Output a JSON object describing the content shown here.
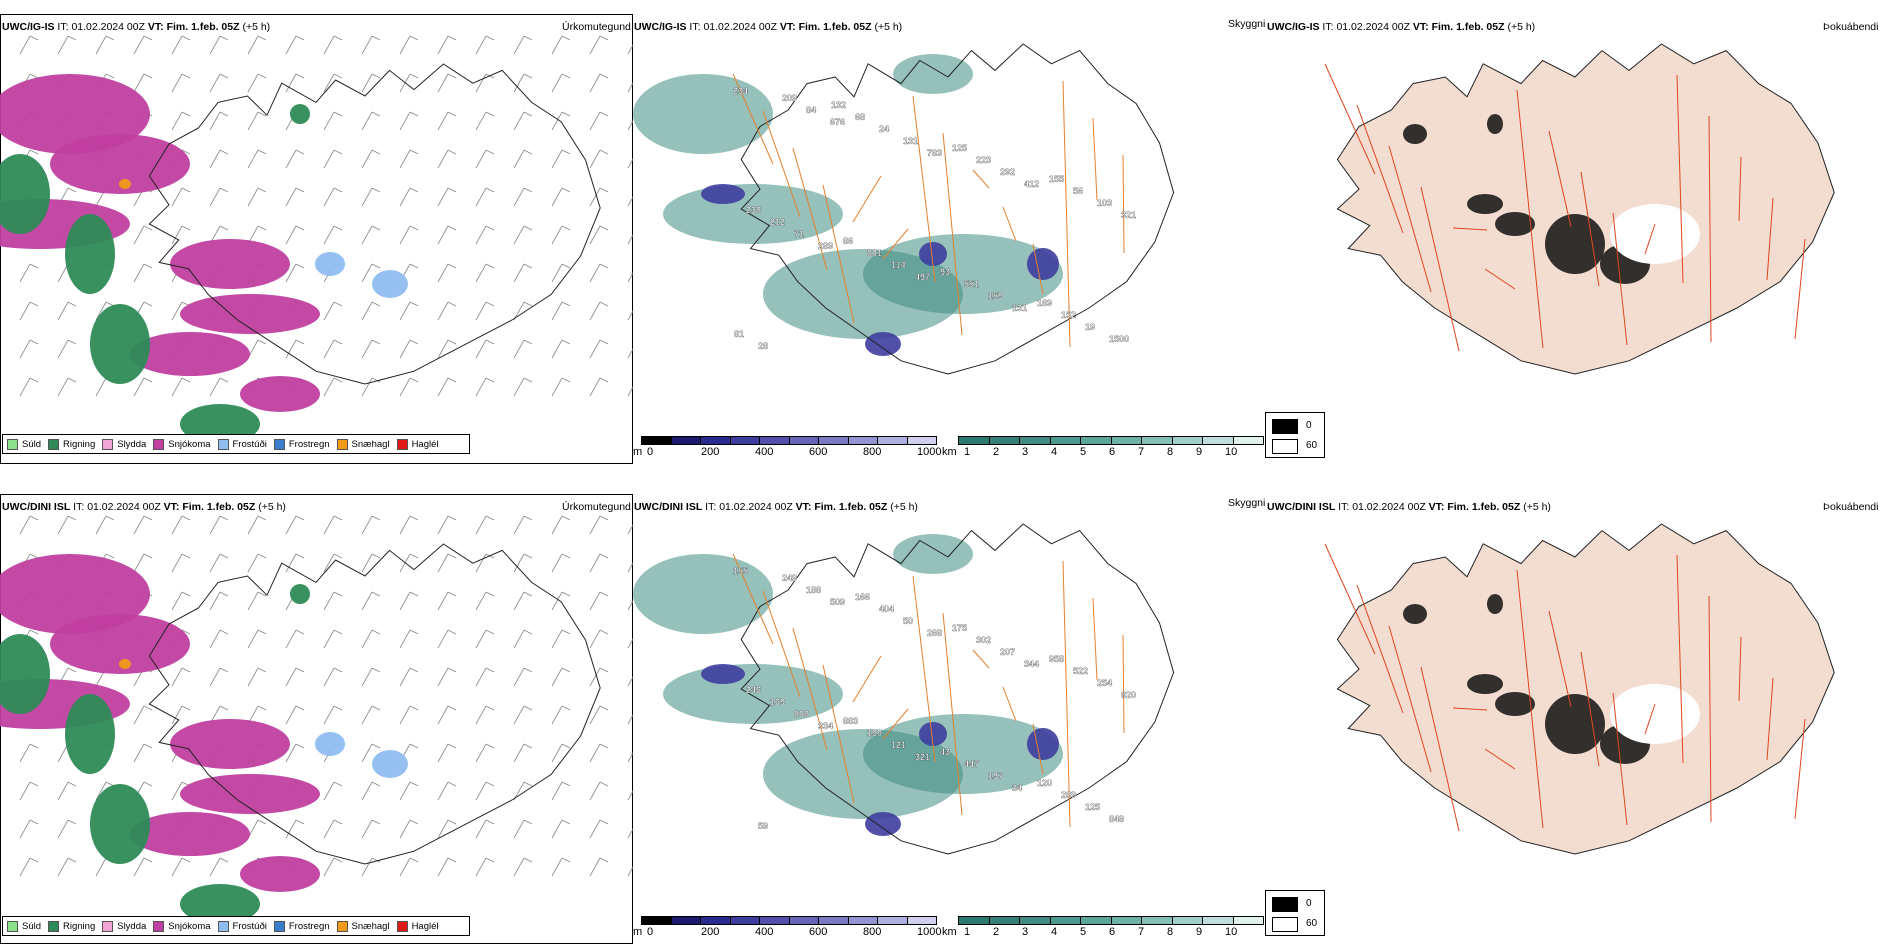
{
  "rows": [
    {
      "precip_header": {
        "model": "UWC/IG-IS",
        "it_label": "IT:",
        "it_value": "01.02.2024 00Z",
        "vt_label": "VT:",
        "vt_value": "Fim. 1.feb. 05Z",
        "lead": "(+5 h)"
      },
      "precip_title": "Úrkomutegund",
      "cloud_header": {
        "model": "UWC/IG-IS",
        "it_label": "IT:",
        "it_value": "01.02.2024 00Z",
        "vt_label": "VT:",
        "vt_value": "Fim. 1.feb. 05Z",
        "lead": "(+5 h)"
      },
      "cloud_title": "Skyggni",
      "fog_header": {
        "model": "UWC/IG-IS",
        "it_label": "IT:",
        "it_value": "01.02.2024 00Z",
        "vt_label": "VT:",
        "vt_value": "Fim. 1.feb. 05Z",
        "lead": "(+5 h)"
      },
      "fog_title": "Þokuábendi",
      "cloud_labels": [
        "234",
        "676",
        "783",
        "412",
        "321",
        "289",
        "497",
        "131",
        "1500",
        "84",
        "131",
        "292",
        "103",
        "71",
        "114",
        "159",
        "19",
        "209",
        "24",
        "223",
        "56",
        "212",
        "801",
        "551",
        "152",
        "28",
        "68",
        "125",
        "155",
        "238",
        "86",
        "93",
        "189",
        "81",
        "132"
      ]
    },
    {
      "precip_header": {
        "model": "UWC/DINI ISL",
        "it_label": "IT:",
        "it_value": "01.02.2024 00Z",
        "vt_label": "VT:",
        "vt_value": "Fim. 1.feb. 05Z",
        "lead": "(+5 h)"
      },
      "precip_title": "Úrkomutegund",
      "cloud_header": {
        "model": "UWC/DINI ISL",
        "it_label": "IT:",
        "it_value": "01.02.2024 00Z",
        "vt_label": "VT:",
        "vt_value": "Fim. 1.feb. 05Z",
        "lead": "(+5 h)"
      },
      "cloud_title": "Skyggni",
      "fog_header": {
        "model": "UWC/DINI ISL",
        "it_label": "IT:",
        "it_value": "01.02.2024 00Z",
        "vt_label": "VT:",
        "vt_value": "Fim. 1.feb. 05Z",
        "lead": "(+5 h)"
      },
      "fog_title": "Þokuábendi",
      "cloud_labels": [
        "155",
        "509",
        "268",
        "344",
        "820",
        "334",
        "321",
        "34",
        "848",
        "188",
        "50",
        "207",
        "254",
        "808",
        "121",
        "197",
        "125",
        "249",
        "404",
        "302",
        "522",
        "169",
        "190",
        "447",
        "289",
        "59",
        "166",
        "175",
        "958",
        "246",
        "883",
        "43",
        "120"
      ]
    }
  ],
  "precip_legend": [
    {
      "label": "Súld",
      "color": "#8be08b"
    },
    {
      "label": "Rigning",
      "color": "#2e8b57"
    },
    {
      "label": "Slydda",
      "color": "#f2a6d6"
    },
    {
      "label": "Snjókoma",
      "color": "#c03fa0"
    },
    {
      "label": "Frostúði",
      "color": "#8fbdf0"
    },
    {
      "label": "Frostregn",
      "color": "#3a7fcc"
    },
    {
      "label": "Snæhagl",
      "color": "#f29a1a"
    },
    {
      "label": "Haglél",
      "color": "#e01818"
    }
  ],
  "cloud_base_scale": {
    "unit": "m",
    "ticks": [
      "0",
      "200",
      "400",
      "600",
      "800",
      "1000"
    ],
    "colors": [
      "#000000",
      "#1a1a6e",
      "#2a2a8e",
      "#3d3d9e",
      "#5050aa",
      "#6666b8",
      "#7a7ac4",
      "#9494d2",
      "#b0b0e0",
      "#d0d0ee"
    ]
  },
  "visibility_scale": {
    "unit": "km",
    "ticks": [
      "1",
      "2",
      "3",
      "4",
      "5",
      "6",
      "7",
      "8",
      "9",
      "10"
    ],
    "colors": [
      "#2a7a70",
      "#347f76",
      "#3f8c82",
      "#4a9a8f",
      "#5aa69a",
      "#6db2a7",
      "#85c0b6",
      "#a0cfc7",
      "#bfe0da",
      "#e0f0ec"
    ]
  },
  "fog_legend": [
    {
      "label": "0",
      "color": "#000000"
    },
    {
      "label": "60",
      "color": "#ffffff"
    }
  ]
}
